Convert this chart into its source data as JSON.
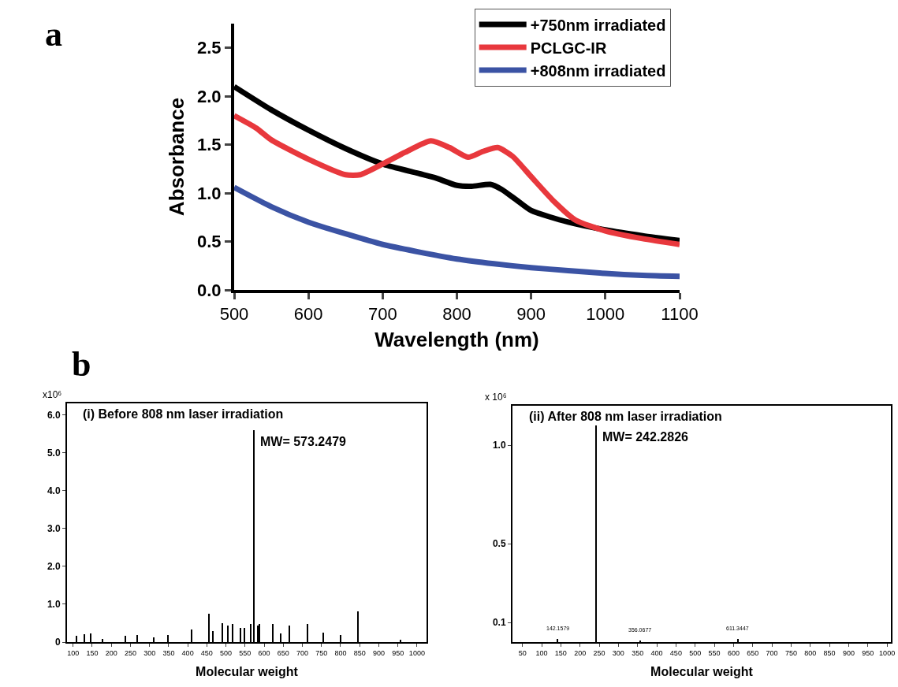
{
  "chart_data": [
    {
      "type": "line",
      "xlabel": "Wavelength (nm)",
      "ylabel": "Absorbance",
      "annotations": [
        "a"
      ],
      "xlim": [
        500,
        1100
      ],
      "xticks": [
        500,
        600,
        700,
        800,
        900,
        1000,
        1100
      ],
      "ylim": [
        0,
        2.75
      ],
      "yticks": [
        {
          "value": 0,
          "label": "0.0"
        },
        {
          "value": 0.5,
          "label": "0.5"
        },
        {
          "value": 1,
          "label": "1.0"
        },
        {
          "value": 1.5,
          "label": "1.5"
        },
        {
          "value": 2,
          "label": "2.0"
        },
        {
          "value": 2.5,
          "label": "2.5"
        }
      ],
      "legend": "top right",
      "marker": "none",
      "line_style": "solid",
      "series": [
        {
          "name": "+750nm irradiated",
          "color": "#000000",
          "x": [
            500,
            550,
            600,
            650,
            700,
            750,
            770,
            800,
            820,
            845,
            860,
            880,
            900,
            950,
            1000,
            1050,
            1100
          ],
          "values": [
            2.1,
            1.86,
            1.65,
            1.46,
            1.3,
            1.2,
            1.16,
            1.08,
            1.07,
            1.09,
            1.04,
            0.93,
            0.82,
            0.7,
            0.62,
            0.56,
            0.51
          ]
        },
        {
          "name": "PCLGC-IR",
          "color": "#e8383d",
          "x": [
            500,
            530,
            550,
            600,
            650,
            670,
            700,
            730,
            765,
            790,
            815,
            835,
            855,
            875,
            900,
            930,
            960,
            1000,
            1050,
            1100
          ],
          "values": [
            1.8,
            1.67,
            1.55,
            1.35,
            1.19,
            1.19,
            1.3,
            1.42,
            1.54,
            1.47,
            1.37,
            1.43,
            1.47,
            1.38,
            1.17,
            0.92,
            0.72,
            0.61,
            0.53,
            0.47
          ]
        },
        {
          "name": "+808nm irradiated",
          "color": "#3b53a4",
          "x": [
            500,
            550,
            600,
            650,
            700,
            750,
            800,
            850,
            900,
            950,
            1000,
            1050,
            1100
          ],
          "values": [
            1.06,
            0.86,
            0.7,
            0.58,
            0.47,
            0.39,
            0.32,
            0.27,
            0.23,
            0.2,
            0.17,
            0.15,
            0.14
          ]
        }
      ]
    },
    {
      "type": "bar",
      "title": "(i) Before 808 nm laser irradiation",
      "xlabel": "Molecular weight",
      "ylabel": "x10⁶",
      "annotations": [
        "b",
        {
          "text": "MW= 573.2479",
          "x": 573,
          "y": 5.6
        }
      ],
      "xlim": [
        84,
        1025
      ],
      "xticks": [
        100,
        150,
        200,
        250,
        300,
        350,
        400,
        450,
        500,
        550,
        600,
        650,
        700,
        750,
        800,
        850,
        900,
        950,
        1000
      ],
      "ylim": [
        0,
        6.3
      ],
      "yticks": [
        {
          "value": 0,
          "label": "0"
        },
        {
          "value": 1,
          "label": "1.0"
        },
        {
          "value": 2,
          "label": "2.0"
        },
        {
          "value": 3,
          "label": "3.0"
        },
        {
          "value": 4,
          "label": "4.0"
        },
        {
          "value": 5,
          "label": "5.0"
        },
        {
          "value": 6,
          "label": "6.0"
        }
      ],
      "series": [
        {
          "color": "#000000",
          "x": [
            109,
            129,
            146,
            177,
            236,
            267,
            311,
            349,
            411,
            456,
            466,
            490,
            504,
            517,
            538,
            548,
            565,
            573,
            583,
            588,
            622,
            643,
            667,
            713,
            754,
            801,
            845,
            957
          ],
          "values": [
            0.16,
            0.2,
            0.23,
            0.09,
            0.16,
            0.19,
            0.12,
            0.19,
            0.33,
            0.75,
            0.3,
            0.5,
            0.44,
            0.47,
            0.37,
            0.37,
            0.47,
            5.6,
            0.44,
            0.47,
            0.47,
            0.23,
            0.44,
            0.47,
            0.26,
            0.19,
            0.82,
            0.07
          ]
        }
      ]
    },
    {
      "type": "bar",
      "title": "(ii) After 808 nm laser irradiation",
      "xlabel": "Molecular weight",
      "ylabel": "x 10⁶",
      "annotations": [
        {
          "text": "MW= 242.2826",
          "x": 242.28,
          "y": 1.1
        },
        {
          "text": "142.1579",
          "x": 142.16,
          "y": 0.015
        },
        {
          "text": "356.0677",
          "x": 356.07,
          "y": 0.01
        },
        {
          "text": "611.3447",
          "x": 611.34,
          "y": 0.015
        }
      ],
      "xlim": [
        24,
        1010
      ],
      "xticks": [
        50,
        100,
        150,
        200,
        250,
        300,
        350,
        400,
        450,
        500,
        550,
        600,
        650,
        700,
        750,
        800,
        850,
        900,
        950,
        1000
      ],
      "ylim": [
        0,
        1.2
      ],
      "yticks": [
        0.1,
        0.5,
        {
          "value": 1,
          "label": "1.0"
        }
      ],
      "series": [
        {
          "color": "#000000",
          "x": [
            142.16,
            242.28,
            356.07,
            611.34
          ],
          "values": [
            0.015,
            1.1,
            0.01,
            0.015
          ]
        }
      ]
    }
  ]
}
